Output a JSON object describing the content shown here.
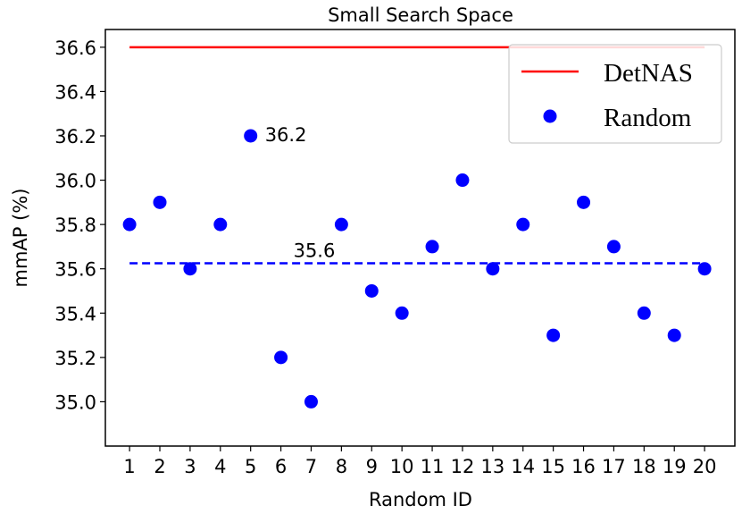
{
  "chart_data": {
    "type": "scatter",
    "title": "Small Search Space",
    "xlabel": "Random ID",
    "ylabel": "mmAP (%)",
    "xlim": [
      0.2,
      21.0
    ],
    "ylim": [
      34.8,
      36.68
    ],
    "x_ticks": [
      "1",
      "2",
      "3",
      "4",
      "5",
      "6",
      "7",
      "8",
      "9",
      "10",
      "11",
      "12",
      "13",
      "14",
      "15",
      "16",
      "17",
      "18",
      "19",
      "20"
    ],
    "y_ticks": [
      "35.0",
      "35.2",
      "35.4",
      "35.6",
      "35.8",
      "36.0",
      "36.2",
      "36.4",
      "36.6"
    ],
    "series": [
      {
        "name": "DetNAS",
        "kind": "line",
        "color": "#ff0000",
        "x": [
          1,
          20
        ],
        "y": [
          36.6,
          36.6
        ]
      },
      {
        "name": "Random",
        "kind": "scatter",
        "color": "#0000ff",
        "x": [
          1,
          2,
          3,
          4,
          5,
          6,
          7,
          8,
          9,
          10,
          11,
          12,
          13,
          14,
          15,
          16,
          17,
          18,
          19,
          20
        ],
        "y": [
          35.8,
          35.9,
          35.6,
          35.8,
          36.2,
          35.2,
          35.0,
          35.8,
          35.5,
          35.4,
          35.7,
          36.0,
          35.6,
          35.8,
          35.3,
          35.9,
          35.7,
          35.4,
          35.3,
          35.6
        ]
      },
      {
        "kind": "dashed-line",
        "color": "#0000ff",
        "x": [
          1,
          20
        ],
        "y": [
          35.625,
          35.625
        ]
      }
    ],
    "annotations": [
      {
        "text": "36.2",
        "x": 5,
        "y": 36.2
      },
      {
        "text": "35.6",
        "x": 6,
        "y": 35.625
      }
    ],
    "legend": {
      "location": "top-right",
      "entries": [
        "DetNAS",
        "Random"
      ]
    },
    "grid": false
  }
}
